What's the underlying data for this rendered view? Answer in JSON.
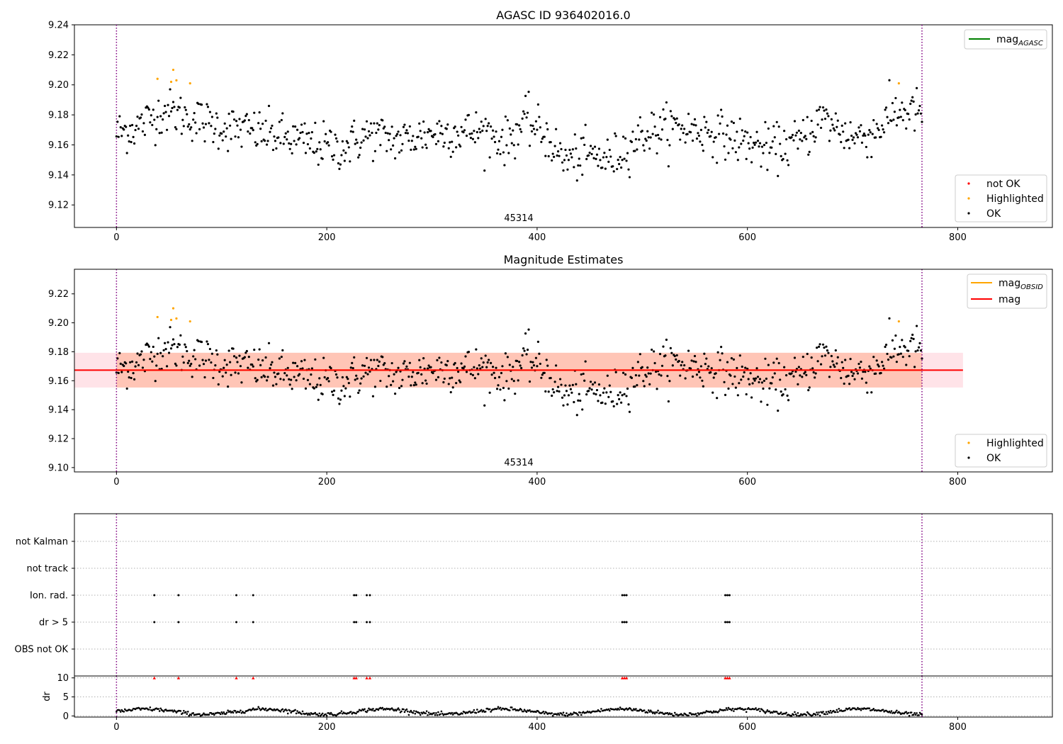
{
  "colors": {
    "ok": "#000000",
    "highlighted": "#ffa500",
    "not_ok": "#ff0000",
    "mag_agasc": "#008000",
    "mag_obsid": "#ffa500",
    "mag": "#ff0000",
    "band_outer": "#ffc0cb",
    "band_inner": "#ffa07a",
    "vline": "#800080"
  },
  "chart_data": [
    {
      "type": "scatter",
      "title": "AGASC ID 936402016.0",
      "xlabel": "",
      "ylabel": "",
      "xlim": [
        -40,
        890
      ],
      "ylim": [
        9.105,
        9.24
      ],
      "xticks": [
        "0",
        "200",
        "400",
        "600",
        "800"
      ],
      "yticks": [
        "9.12",
        "9.14",
        "9.16",
        "9.18",
        "9.20",
        "9.22",
        "9.24"
      ],
      "annotation": "45314",
      "vlines": [
        0,
        766
      ],
      "legend_lines": [
        {
          "label": "mag",
          "sub": "AGASC",
          "placement": "top-right"
        }
      ],
      "legend_markers": [
        "not OK",
        "Highlighted",
        "OK"
      ],
      "highlighted": [
        [
          39,
          9.204
        ],
        [
          52,
          9.202
        ],
        [
          54,
          9.21
        ],
        [
          57,
          9.203
        ],
        [
          70,
          9.201
        ],
        [
          744,
          9.201
        ]
      ],
      "grid": false
    },
    {
      "type": "scatter",
      "title": "Magnitude Estimates",
      "xlabel": "",
      "ylabel": "",
      "xlim": [
        -40,
        890
      ],
      "ylim": [
        9.097,
        9.237
      ],
      "xticks": [
        "0",
        "200",
        "400",
        "600",
        "800"
      ],
      "yticks": [
        "9.10",
        "9.12",
        "9.14",
        "9.16",
        "9.18",
        "9.20",
        "9.22"
      ],
      "annotation": "45314",
      "vlines": [
        0,
        766
      ],
      "mag": 9.1673,
      "band_outer": [
        9.1553,
        9.1793
      ],
      "band_inner": [
        9.1553,
        9.1793
      ],
      "legend_lines": [
        {
          "label": "mag",
          "sub": "OBSID"
        },
        {
          "label": "mag",
          "sub": ""
        }
      ],
      "legend_markers": [
        "Highlighted",
        "OK"
      ],
      "grid": false
    },
    {
      "type": "scatter",
      "title": "",
      "categories": [
        "not Kalman",
        "not track",
        "Ion. rad.",
        "dr > 5",
        "OBS not OK"
      ],
      "flag_x": [
        36,
        59,
        114,
        130,
        226,
        228,
        238,
        241,
        481,
        483,
        485,
        579,
        581,
        583
      ],
      "xlim": [
        -40,
        890
      ],
      "grid": true
    },
    {
      "type": "scatter",
      "title": "",
      "ylabel": "dr",
      "xlim": [
        -40,
        890
      ],
      "ylim": [
        -0.3,
        10.5
      ],
      "xticks": [
        "0",
        "200",
        "400",
        "600",
        "800"
      ],
      "yticks": [
        "0",
        "5",
        "10"
      ],
      "clipped_value": 10,
      "clipped_x": [
        36,
        59,
        114,
        130,
        226,
        228,
        238,
        241,
        481,
        483,
        485,
        579,
        581,
        583
      ],
      "grid": true
    }
  ]
}
